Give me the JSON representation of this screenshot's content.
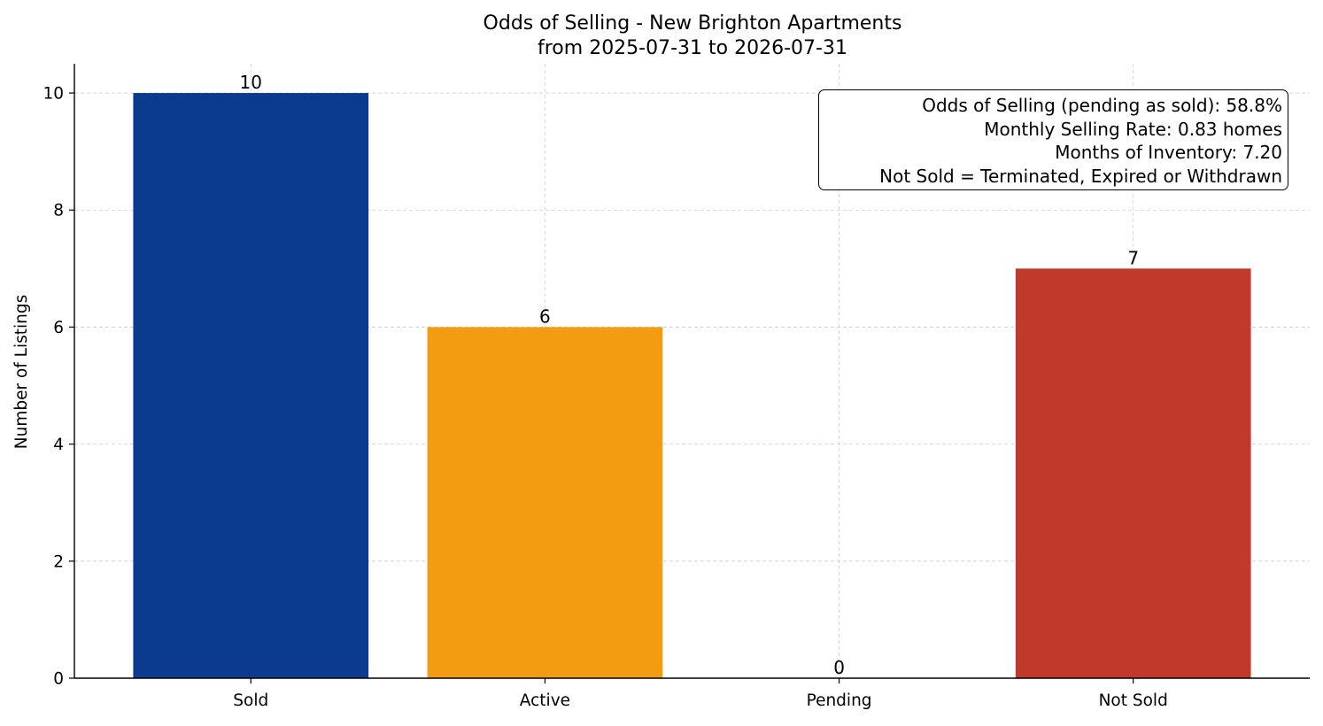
{
  "chart_data": {
    "type": "bar",
    "title": "Odds of Selling - New Brighton Apartments",
    "subtitle": "from 2025-07-31 to 2026-07-31",
    "xlabel": "",
    "ylabel": "Number of Listings",
    "categories": [
      "Sold",
      "Active",
      "Pending",
      "Not Sold"
    ],
    "values": [
      10,
      6,
      0,
      7
    ],
    "colors": [
      "#0b3b8f",
      "#f39c12",
      "#1f77b4",
      "#c0392b"
    ],
    "ylim": [
      0,
      10.5
    ],
    "yticks": [
      0,
      2,
      4,
      6,
      8,
      10
    ],
    "grid": true,
    "annotation": {
      "placement": "top-right",
      "lines": [
        "Odds of Selling (pending as sold): 58.8%",
        "Monthly Selling Rate: 0.83 homes",
        "Months of Inventory: 7.20",
        "Not Sold = Terminated, Expired or Withdrawn"
      ]
    }
  }
}
